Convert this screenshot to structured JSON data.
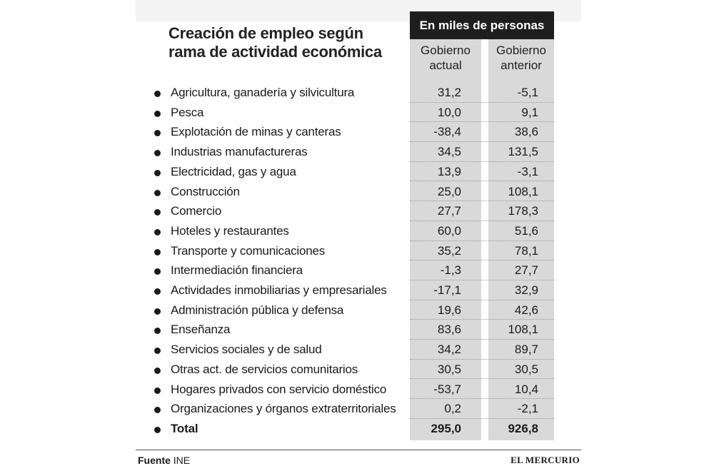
{
  "title_lines": [
    "Creación de empleo según",
    "rama de actividad económica"
  ],
  "units_header": "En miles de personas",
  "columns": [
    {
      "line1": "Gobierno",
      "line2": "actual"
    },
    {
      "line1": "Gobierno",
      "line2": "anterior"
    }
  ],
  "footer": {
    "source_label": "Fuente",
    "source_value": "INE",
    "brand": "EL MERCURIO"
  },
  "colors": {
    "header_bg": "#1e1e1e",
    "column_bg": "#d9d9d9",
    "text": "#1a1a1a"
  },
  "chart_data": {
    "type": "table",
    "title": "Creación de empleo según rama de actividad económica",
    "units": "En miles de personas",
    "columns": [
      "Gobierno actual",
      "Gobierno anterior"
    ],
    "rows": [
      {
        "label": "Agricultura, ganadería y silvicultura",
        "actual": "31,2",
        "anterior": "-5,1"
      },
      {
        "label": "Pesca",
        "actual": "10,0",
        "anterior": "9,1"
      },
      {
        "label": "Explotación de minas y canteras",
        "actual": "-38,4",
        "anterior": "38,6"
      },
      {
        "label": "Industrias manufactureras",
        "actual": "34,5",
        "anterior": "131,5"
      },
      {
        "label": "Electricidad, gas y agua",
        "actual": "13,9",
        "anterior": "-3,1"
      },
      {
        "label": "Construcción",
        "actual": "25,0",
        "anterior": "108,1"
      },
      {
        "label": "Comercio",
        "actual": "27,7",
        "anterior": "178,3"
      },
      {
        "label": "Hoteles y restaurantes",
        "actual": "60,0",
        "anterior": "51,6"
      },
      {
        "label": "Transporte y comunicaciones",
        "actual": "35,2",
        "anterior": "78,1"
      },
      {
        "label": "Intermediación financiera",
        "actual": "-1,3",
        "anterior": "27,7"
      },
      {
        "label": "Actividades inmobiliarias y empresariales",
        "actual": "-17,1",
        "anterior": "32,9"
      },
      {
        "label": "Administración pública y defensa",
        "actual": "19,6",
        "anterior": "42,6"
      },
      {
        "label": "Enseñanza",
        "actual": "83,6",
        "anterior": "108,1"
      },
      {
        "label": "Servicios sociales y de salud",
        "actual": "34,2",
        "anterior": "89,7"
      },
      {
        "label": "Otras act. de servicios comunitarios",
        "actual": "30,5",
        "anterior": "30,5"
      },
      {
        "label": "Hogares privados con servicio doméstico",
        "actual": "-53,7",
        "anterior": "10,4"
      },
      {
        "label": "Organizaciones y órganos extraterritoriales",
        "actual": "0,2",
        "anterior": "-2,1"
      }
    ],
    "total": {
      "label": "Total",
      "actual": "295,0",
      "anterior": "926,8"
    }
  }
}
